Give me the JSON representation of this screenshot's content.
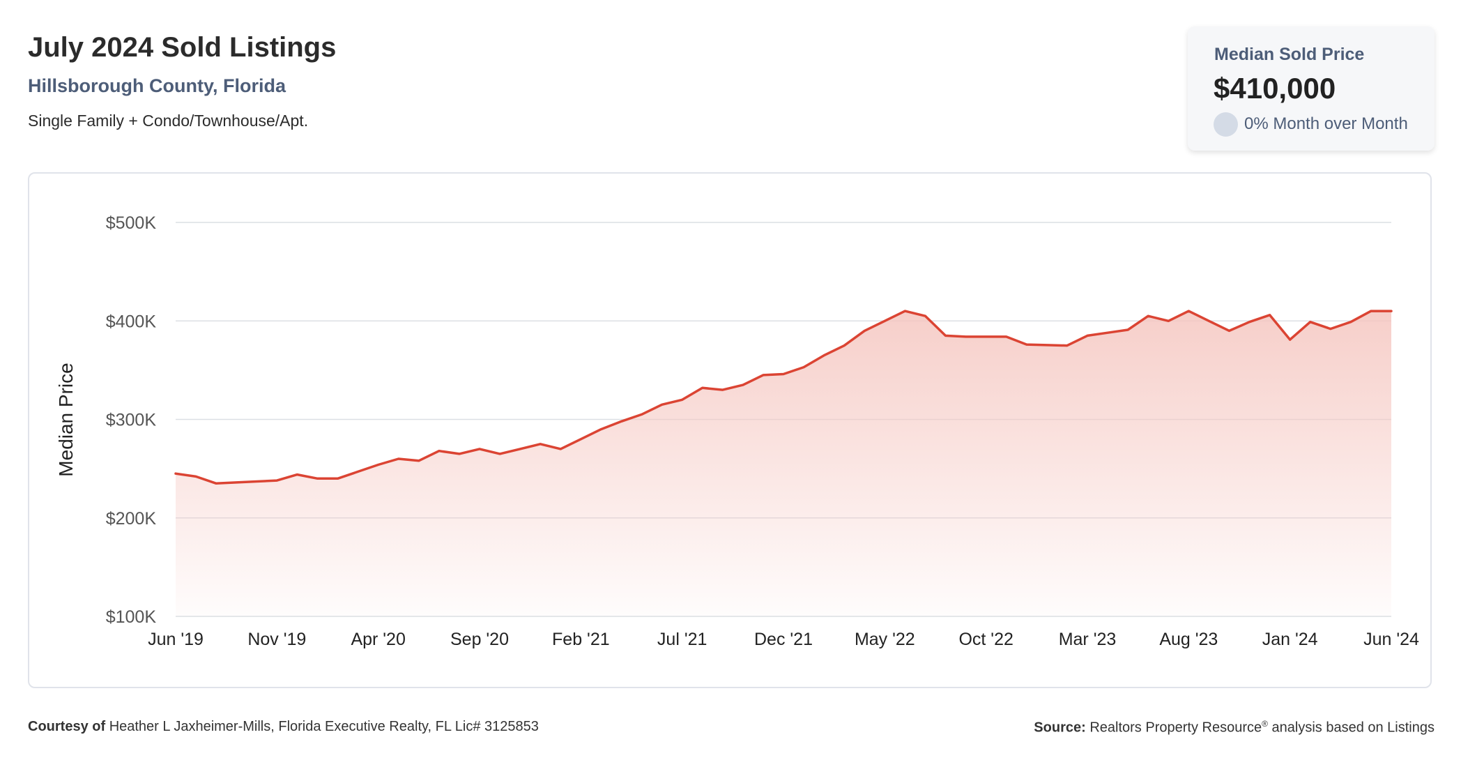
{
  "header": {
    "title": "July 2024 Sold Listings",
    "subtitle": "Hillsborough County, Florida",
    "description": "Single Family + Condo/Townhouse/Apt."
  },
  "summary_card": {
    "label": "Median Sold Price",
    "value": "$410,000",
    "change": "0% Month over Month"
  },
  "footer": {
    "courtesy_label": "Courtesy of",
    "courtesy_text": "Heather L Jaxheimer-Mills, Florida Executive Realty, FL Lic# 3125853",
    "source_label": "Source:",
    "source_text_1": "Realtors Property Resource",
    "source_reg": "®",
    "source_text_2": "analysis based on Listings"
  },
  "colors": {
    "line": "#db4433",
    "area_top": "#f5c6c0",
    "grid": "#dcdfe4",
    "axis_text": "#555555"
  },
  "chart_data": {
    "type": "area",
    "ylabel": "Median Price",
    "ylim": [
      100000,
      500000
    ],
    "yticks": [
      {
        "value": 500000,
        "label": "$500K"
      },
      {
        "value": 400000,
        "label": "$400K"
      },
      {
        "value": 300000,
        "label": "$300K"
      },
      {
        "value": 200000,
        "label": "$200K"
      },
      {
        "value": 100000,
        "label": "$100K"
      }
    ],
    "xticks": [
      {
        "index": 0,
        "label": "Jun '19"
      },
      {
        "index": 5,
        "label": "Nov '19"
      },
      {
        "index": 10,
        "label": "Apr '20"
      },
      {
        "index": 15,
        "label": "Sep '20"
      },
      {
        "index": 20,
        "label": "Feb '21"
      },
      {
        "index": 25,
        "label": "Jul '21"
      },
      {
        "index": 30,
        "label": "Dec '21"
      },
      {
        "index": 35,
        "label": "May '22"
      },
      {
        "index": 40,
        "label": "Oct '22"
      },
      {
        "index": 45,
        "label": "Mar '23"
      },
      {
        "index": 50,
        "label": "Aug '23"
      },
      {
        "index": 55,
        "label": "Jan '24"
      },
      {
        "index": 60,
        "label": "Jun '24"
      }
    ],
    "series": [
      {
        "name": "",
        "x": [
          "2019-06",
          "2019-07",
          "2019-08",
          "2019-09",
          "2019-10",
          "2019-11",
          "2019-12",
          "2020-01",
          "2020-02",
          "2020-03",
          "2020-04",
          "2020-05",
          "2020-06",
          "2020-07",
          "2020-08",
          "2020-09",
          "2020-10",
          "2020-11",
          "2020-12",
          "2021-01",
          "2021-02",
          "2021-03",
          "2021-04",
          "2021-05",
          "2021-06",
          "2021-07",
          "2021-08",
          "2021-09",
          "2021-10",
          "2021-11",
          "2021-12",
          "2022-01",
          "2022-02",
          "2022-03",
          "2022-04",
          "2022-05",
          "2022-06",
          "2022-07",
          "2022-08",
          "2022-09",
          "2022-10",
          "2022-11",
          "2022-12",
          "2023-01",
          "2023-02",
          "2023-03",
          "2023-04",
          "2023-05",
          "2023-06",
          "2023-07",
          "2023-08",
          "2023-09",
          "2023-10",
          "2023-11",
          "2023-12",
          "2024-01",
          "2024-02",
          "2024-03",
          "2024-04",
          "2024-05",
          "2024-06"
        ],
        "values": [
          245000,
          242000,
          235000,
          236000,
          237000,
          238000,
          244000,
          240000,
          240000,
          247000,
          254000,
          260000,
          258000,
          268000,
          265000,
          270000,
          265000,
          270000,
          275000,
          270000,
          280000,
          290000,
          298000,
          305000,
          315000,
          320000,
          332000,
          330000,
          335000,
          345000,
          346000,
          353000,
          365000,
          375000,
          390000,
          400000,
          410000,
          405000,
          385000,
          384000,
          384000,
          384000,
          376000,
          375500,
          375000,
          385000,
          388000,
          391000,
          405000,
          400000,
          410000,
          400000,
          390000,
          399000,
          406000,
          381000,
          399000,
          392000,
          399000,
          410000,
          410000
        ]
      }
    ]
  }
}
